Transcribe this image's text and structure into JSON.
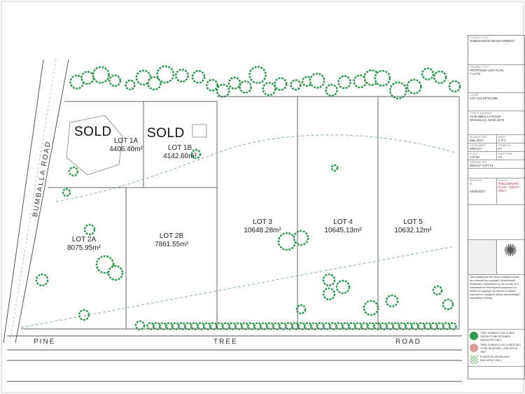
{
  "lots": [
    {
      "name": "LOT 1A",
      "area": "4406.40m²",
      "sold": "SOLD"
    },
    {
      "name": "LOT 1B",
      "area": "4142.60m²",
      "sold": "SOLD"
    },
    {
      "name": "LOT 2A",
      "area": "8075.95m²"
    },
    {
      "name": "LOT 2B",
      "area": "7861.55m²"
    },
    {
      "name": "LOT 3",
      "area": "10648.28m²"
    },
    {
      "name": "LOT 4",
      "area": "10645.13m²"
    },
    {
      "name": "LOT 5",
      "area": "10632.12m²"
    }
  ],
  "roads": {
    "side": "BUMBALLA   ROAD",
    "front": [
      "PINE",
      "TREE",
      "ROAD"
    ]
  },
  "title_block": {
    "project_title": "SUBDIVISION DEVELOPMENT",
    "drawing_title": "PROPOSED LOT PLAN",
    "drawing_subtitle": "7 LOTS",
    "lot_dp": "LOT 113 DP751298",
    "address_line1": "15 BUMBALLA ROAD",
    "address_line2": "WINGELLO, NSW, 2579",
    "date": "May 2017",
    "sheet": "1 of 2",
    "job_number": "0091417",
    "drawn_by": "PJ",
    "scale": "1:3716",
    "sheet_size": "A3",
    "drawing_ref": "0091417 LOT 01",
    "revision": "A",
    "revision_date": "03/05/2017",
    "status": "PRELIMINARY PLAN - DRAFT ONLY",
    "copyright": "This drawing and the ideas contained herein are protected by copyright. Unauthorised distribution, reproduction or use as part of a submission for development purposes is a breach of copyright. No licence is implied, expressed or assigned unless acknowledged separately in writing.",
    "legend": [
      "TREE SYMBOLS COLOURED GREEN TO BE RETAINED - INDICATIVE ONLY",
      "TREE SYMBOLS COLOURED RED TO BE REMOVED - INDICATIVE ONLY",
      "FORESTED WOODLAND - INDICATIVE ONLY"
    ]
  },
  "colors": {
    "tree": "#2e9a4e",
    "line": "#555555",
    "status": "#c0304a"
  }
}
